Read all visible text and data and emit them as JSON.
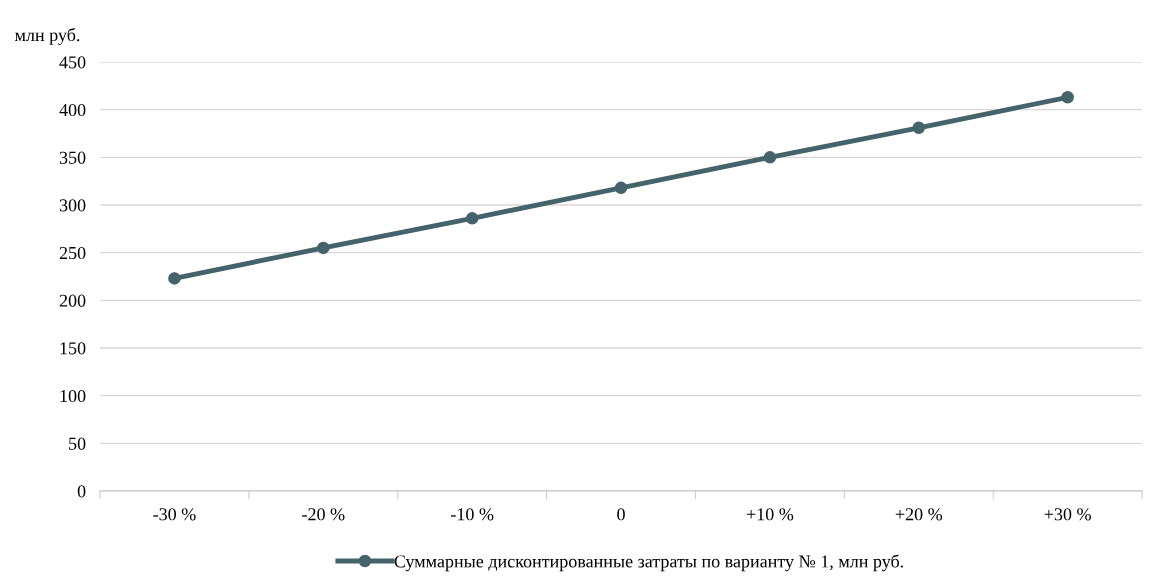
{
  "chart_data": {
    "type": "line",
    "ylabel": "млн руб.",
    "categories": [
      "-30 %",
      "-20 %",
      "-10 %",
      "0",
      "+10 %",
      "+20 %",
      "+30 %"
    ],
    "series": [
      {
        "name": "Суммарные дисконтированные затраты по варианту № 1, млн руб.",
        "color": "#44636a",
        "values": [
          223,
          255,
          286,
          318,
          350,
          381,
          413
        ]
      }
    ],
    "ylim": [
      0,
      450
    ],
    "yticks": [
      0,
      50,
      100,
      150,
      200,
      250,
      300,
      350,
      400,
      450
    ],
    "grid": "y",
    "legend": "bottom",
    "marker": "circle",
    "line_style": "solid"
  }
}
